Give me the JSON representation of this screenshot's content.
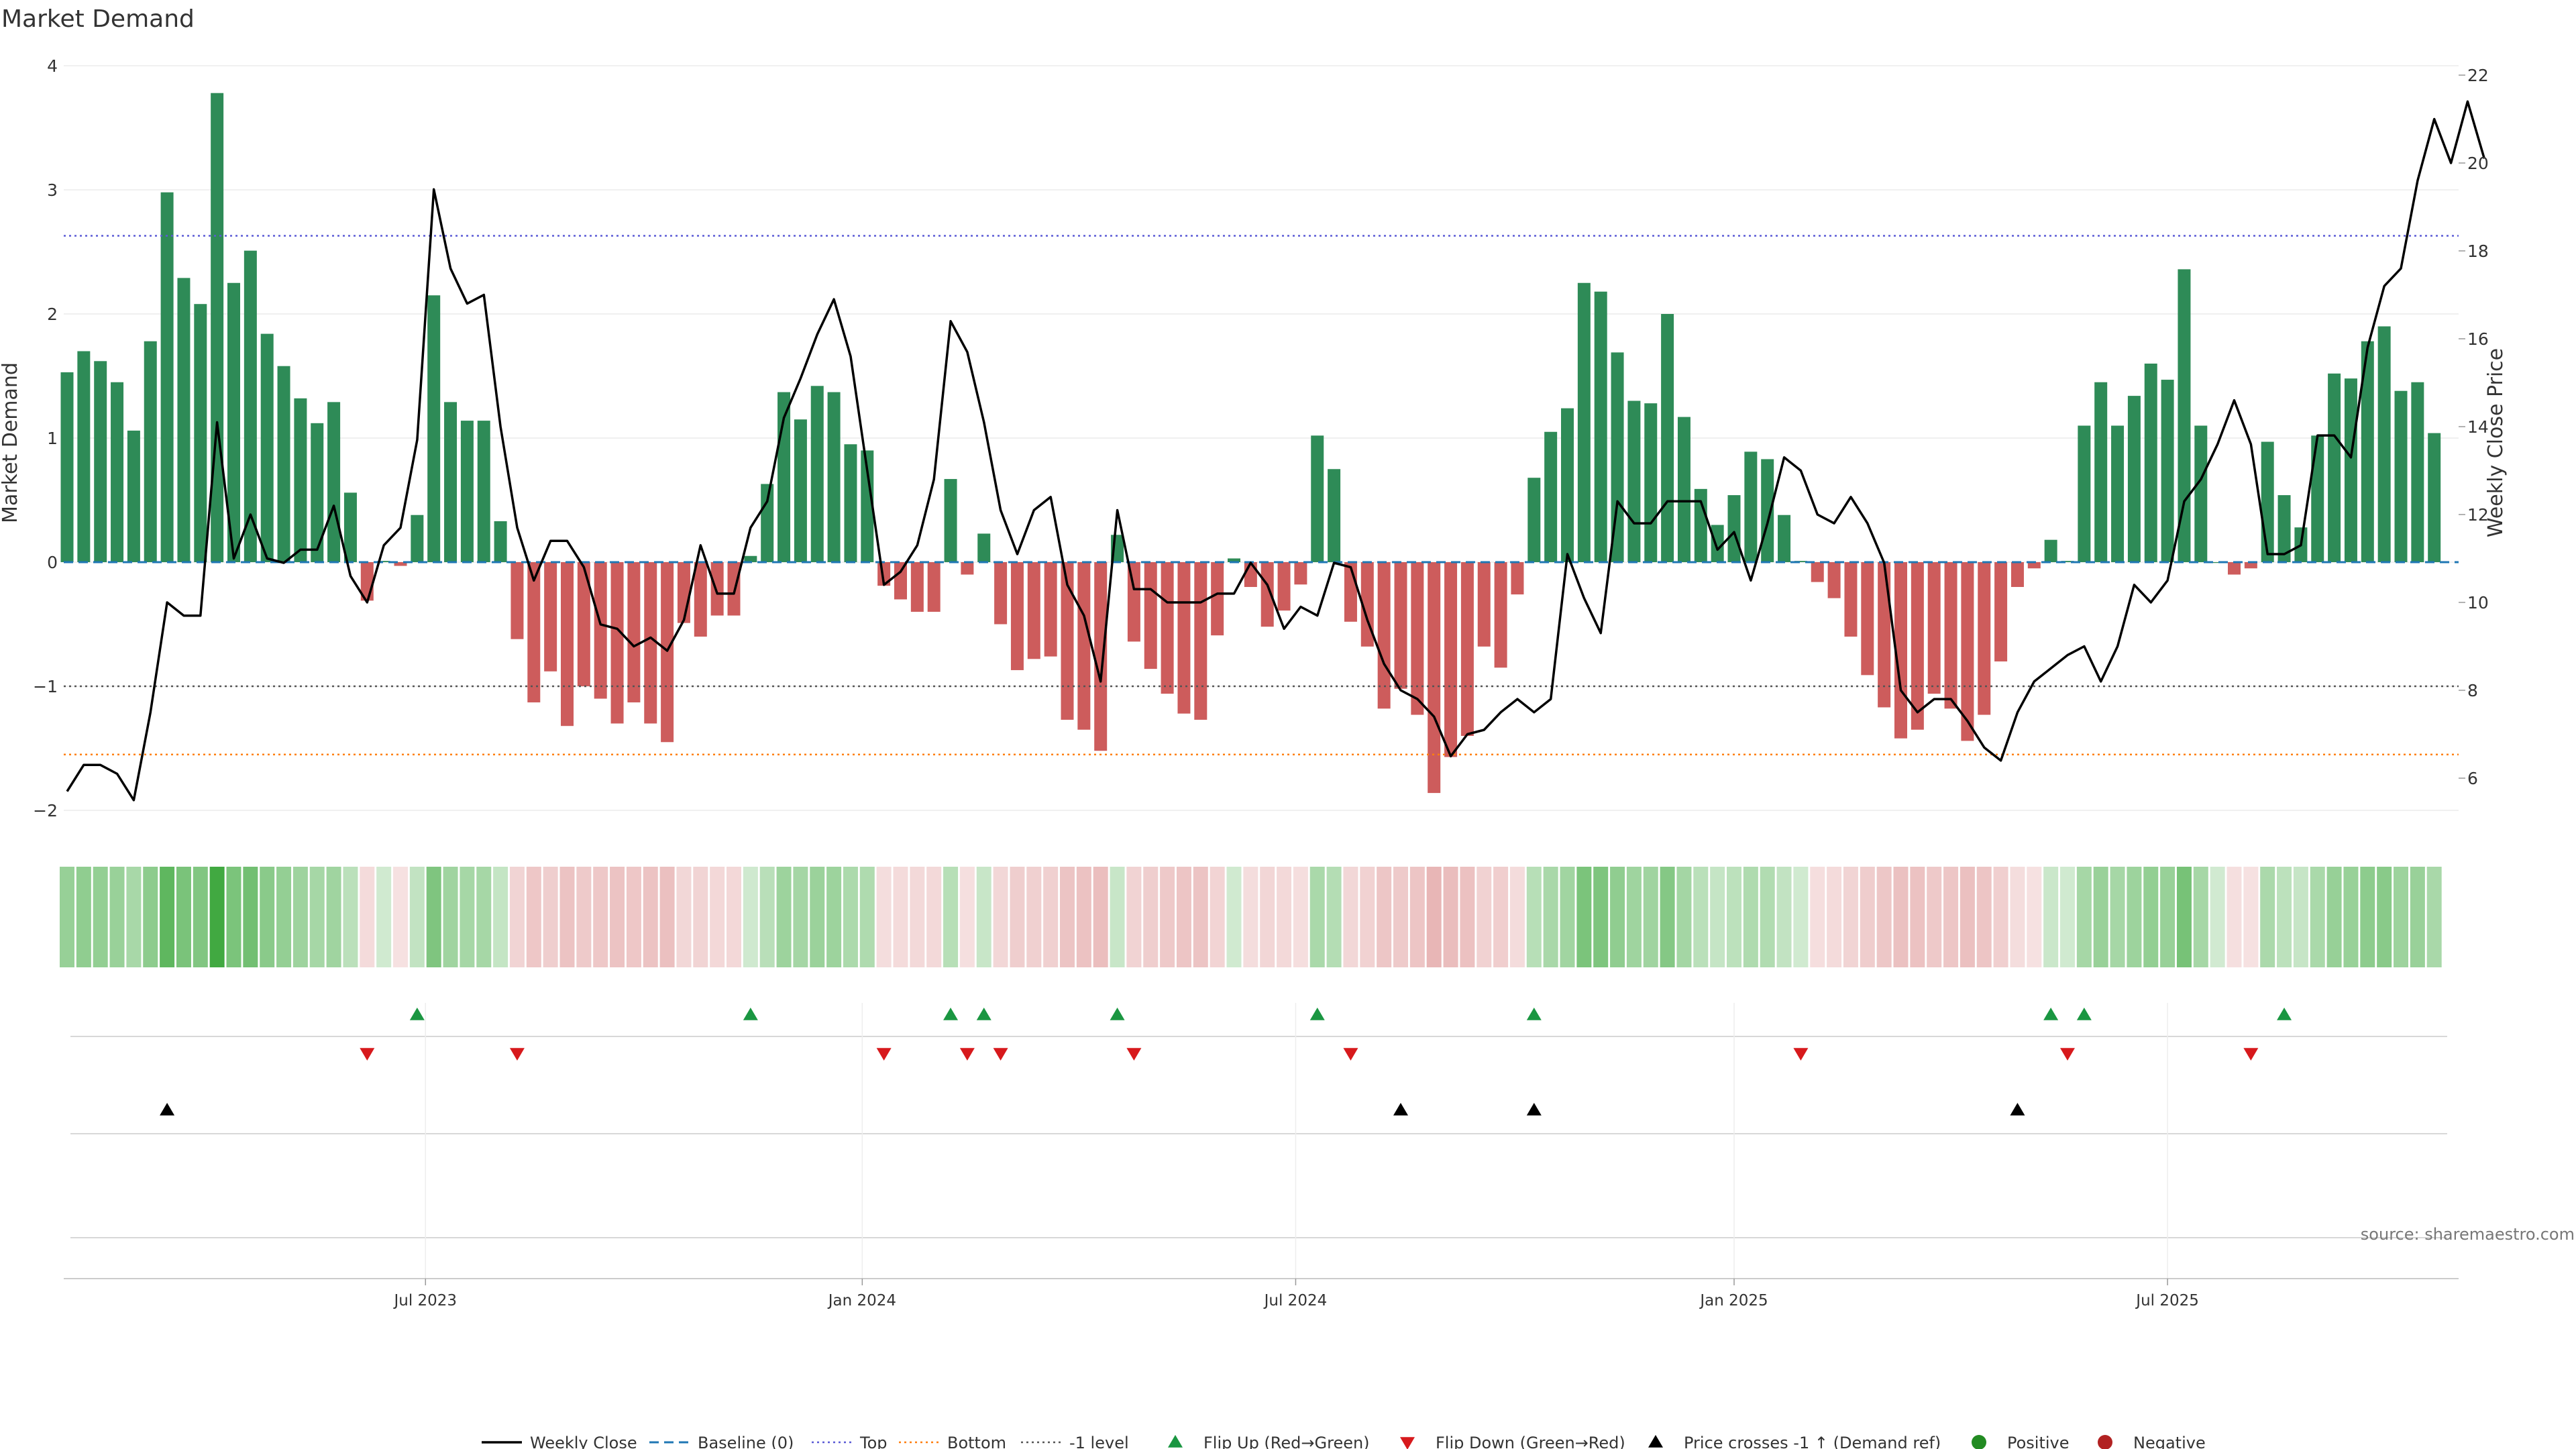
{
  "chart_data": {
    "type": "bar",
    "title": "Market Demand",
    "ylabel": "Market Demand",
    "y2label": "Weekly Close Price",
    "ylim": [
      -2,
      4
    ],
    "y2lim": [
      5,
      22
    ],
    "yticks": [
      "−2",
      "−1",
      "0",
      "1",
      "2",
      "3",
      "4"
    ],
    "y2ticks": [
      "6",
      "8",
      "10",
      "12",
      "14",
      "16",
      "18",
      "20",
      "22"
    ],
    "x_dates": [
      "Jul 2023",
      "Jan 2024",
      "Jul 2024",
      "Jan 2025",
      "Jul 2025"
    ],
    "x_date_weeks": [
      21.5,
      47.7,
      73.7,
      100,
      126
    ],
    "reference_lines": {
      "top": 2.63,
      "bottom": -1.55,
      "minus_one": -1.0,
      "baseline": 0
    },
    "demand": [
      1.53,
      1.7,
      1.62,
      1.45,
      1.06,
      1.78,
      2.98,
      2.29,
      2.08,
      3.78,
      2.25,
      2.51,
      1.84,
      1.58,
      1.32,
      1.12,
      1.29,
      0.56,
      -0.31,
      0.01,
      -0.03,
      0.38,
      2.15,
      1.29,
      1.14,
      1.14,
      0.33,
      -0.62,
      -1.13,
      -0.88,
      -1.32,
      -1.0,
      -1.1,
      -1.3,
      -1.13,
      -1.3,
      -1.45,
      -0.49,
      -0.6,
      -0.43,
      -0.43,
      0.05,
      0.63,
      1.37,
      1.15,
      1.42,
      1.37,
      0.95,
      0.9,
      -0.19,
      -0.3,
      -0.4,
      -0.4,
      0.67,
      -0.1,
      0.23,
      -0.5,
      -0.87,
      -0.78,
      -0.76,
      -1.27,
      -1.35,
      -1.52,
      0.22,
      -0.64,
      -0.86,
      -1.06,
      -1.22,
      -1.27,
      -0.59,
      0.03,
      -0.2,
      -0.52,
      -0.39,
      -0.18,
      1.02,
      0.75,
      -0.48,
      -0.68,
      -1.18,
      -1.02,
      -1.23,
      -1.86,
      -1.57,
      -1.4,
      -0.68,
      -0.85,
      -0.26,
      0.68,
      1.05,
      1.24,
      2.25,
      2.18,
      1.69,
      1.3,
      1.28,
      2.0,
      1.17,
      0.59,
      0.3,
      0.54,
      0.89,
      0.83,
      0.38,
      0.01,
      -0.16,
      -0.29,
      -0.6,
      -0.91,
      -1.17,
      -1.42,
      -1.35,
      -1.06,
      -1.18,
      -1.44,
      -1.23,
      -0.8,
      -0.2,
      -0.05,
      0.18,
      0.01,
      1.1,
      1.45,
      1.1,
      1.34,
      1.6,
      1.47,
      2.36,
      1.1,
      0.0,
      -0.1,
      -0.05,
      0.97,
      0.54,
      0.28,
      1.02,
      1.52,
      1.48,
      1.78,
      1.9,
      1.38,
      1.45,
      1.04
    ],
    "price": [
      5.7,
      6.3,
      6.3,
      6.1,
      5.5,
      7.5,
      10.0,
      9.7,
      9.7,
      14.1,
      11.0,
      12.0,
      11.0,
      10.9,
      11.2,
      11.2,
      12.2,
      10.6,
      10.0,
      11.3,
      11.7,
      13.7,
      19.4,
      17.6,
      16.8,
      17.0,
      14.0,
      11.7,
      10.5,
      11.4,
      11.4,
      10.8,
      9.5,
      9.4,
      9.0,
      9.2,
      8.9,
      9.6,
      11.3,
      10.2,
      10.2,
      11.7,
      12.3,
      14.2,
      15.1,
      16.1,
      16.9,
      15.6,
      13.0,
      10.4,
      10.7,
      11.3,
      12.8,
      16.4,
      15.7,
      14.1,
      12.1,
      11.1,
      12.1,
      12.4,
      10.4,
      9.7,
      8.2,
      12.1,
      10.3,
      10.3,
      10.0,
      10.0,
      10.0,
      10.2,
      10.2,
      10.9,
      10.4,
      9.4,
      9.9,
      9.7,
      10.9,
      10.8,
      9.6,
      8.6,
      8.0,
      7.8,
      7.4,
      6.5,
      7.0,
      7.1,
      7.5,
      7.8,
      7.5,
      7.8,
      11.1,
      10.1,
      9.3,
      12.3,
      11.8,
      11.8,
      12.3,
      12.3,
      12.3,
      11.2,
      11.6,
      10.5,
      11.8,
      13.3,
      13.0,
      12.0,
      11.8,
      12.4,
      11.8,
      10.9,
      8.0,
      7.5,
      7.8,
      7.8,
      7.3,
      6.7,
      6.4,
      7.5,
      8.2,
      8.5,
      8.8,
      9.0,
      8.2,
      9.0,
      10.4,
      10.0,
      10.5,
      12.3,
      12.8,
      13.6,
      14.6,
      13.6,
      11.1,
      11.1,
      11.3,
      13.8,
      13.8,
      13.3,
      15.8,
      17.2,
      17.6,
      19.6,
      21.0,
      20.0,
      21.4,
      20.1
    ],
    "flip_up_weeks": [
      21,
      41,
      53,
      55,
      63,
      75,
      88,
      119,
      121,
      133
    ],
    "flip_down_weeks": [
      18,
      27,
      49,
      54,
      56,
      64,
      77,
      104,
      120,
      131
    ],
    "price_cross_weeks": [
      6,
      80,
      88,
      117
    ],
    "source": "source: sharemaestro.com",
    "legend": [
      {
        "label": "Weekly Close",
        "marker": "line",
        "color": "#000000"
      },
      {
        "label": "Baseline (0)",
        "marker": "dash",
        "color": "#1f77b4"
      },
      {
        "label": "Top",
        "marker": "dotted",
        "color": "#5b5bd6"
      },
      {
        "label": "Bottom",
        "marker": "dotted",
        "color": "#ff7f0e"
      },
      {
        "label": "-1 level",
        "marker": "dotted",
        "color": "#555555"
      },
      {
        "label": "Flip Up (Red→Green)",
        "marker": "tri-up",
        "color": "#1a9641"
      },
      {
        "label": "Flip Down (Green→Red)",
        "marker": "tri-down",
        "color": "#d7191c"
      },
      {
        "label": "Price crosses -1 ↑ (Demand ref)",
        "marker": "tri-up",
        "color": "#000000"
      },
      {
        "label": "Positive",
        "marker": "dot",
        "color": "#228b22"
      },
      {
        "label": "Negative",
        "marker": "dot",
        "color": "#b22222"
      }
    ],
    "colors": {
      "positive_bar": "#2e8b57",
      "negative_bar": "#cd5c5c",
      "price_line": "#000000"
    }
  }
}
